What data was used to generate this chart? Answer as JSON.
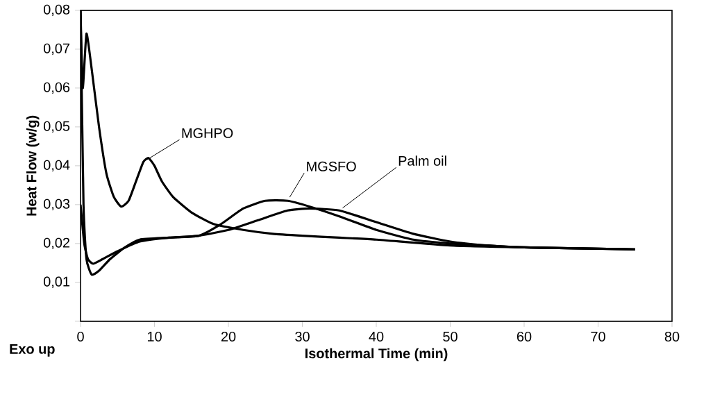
{
  "chart_data": {
    "type": "line",
    "xlabel": "Isothermal Time (min)",
    "ylabel": "Heat Flow (w/g)",
    "annotations": [
      "Exo up"
    ],
    "series": [
      {
        "name": "MGHPO",
        "color": "#000000",
        "x": [
          0,
          0.3,
          0.8,
          1.5,
          2.5,
          3.5,
          4.5,
          5.5,
          6.5,
          7.5,
          8.5,
          9.2,
          10,
          11,
          12.5,
          15,
          18,
          22,
          26,
          30,
          35,
          40,
          50,
          60,
          75
        ],
        "values": [
          0.08,
          0.06,
          0.074,
          0.065,
          0.05,
          0.038,
          0.032,
          0.0295,
          0.031,
          0.036,
          0.041,
          0.042,
          0.04,
          0.036,
          0.032,
          0.028,
          0.025,
          0.0235,
          0.0225,
          0.022,
          0.0215,
          0.021,
          0.0195,
          0.019,
          0.0185
        ]
      },
      {
        "name": "MGSFO",
        "color": "#000000",
        "x": [
          0,
          0.4,
          0.8,
          1.5,
          2.5,
          4,
          6,
          8,
          12,
          16,
          19,
          22,
          25,
          28,
          31,
          35,
          40,
          45,
          50,
          55,
          60,
          75
        ],
        "values": [
          0.08,
          0.03,
          0.016,
          0.012,
          0.013,
          0.016,
          0.019,
          0.021,
          0.0215,
          0.022,
          0.025,
          0.029,
          0.031,
          0.031,
          0.0295,
          0.027,
          0.0235,
          0.021,
          0.02,
          0.0195,
          0.019,
          0.0185
        ]
      },
      {
        "name": "Palm oil",
        "color": "#000000",
        "x": [
          0,
          0.5,
          1,
          1.7,
          3,
          5,
          8,
          12,
          16,
          20,
          24,
          28,
          31,
          35,
          40,
          45,
          50,
          55,
          60,
          75
        ],
        "values": [
          0.03,
          0.02,
          0.016,
          0.0148,
          0.016,
          0.018,
          0.0205,
          0.0215,
          0.022,
          0.0235,
          0.026,
          0.0285,
          0.029,
          0.0285,
          0.0255,
          0.0225,
          0.0205,
          0.0195,
          0.019,
          0.0185
        ]
      }
    ],
    "xlim": [
      0,
      80
    ],
    "xticks": [
      0,
      10,
      20,
      30,
      40,
      50,
      60,
      70,
      80
    ],
    "ylim": [
      0,
      0.08
    ],
    "yticks": [
      {
        "value": 0,
        "label": null
      },
      {
        "value": 0.01,
        "label": "0,01"
      },
      {
        "value": 0.02,
        "label": "0,02"
      },
      {
        "value": 0.03,
        "label": "0,03"
      },
      {
        "value": 0.04,
        "label": "0,04"
      },
      {
        "value": 0.05,
        "label": "0,05"
      },
      {
        "value": 0.06,
        "label": "0,06"
      },
      {
        "value": 0.07,
        "label": "0,07"
      },
      {
        "value": 0.08,
        "label": "0,08"
      }
    ],
    "grid": false,
    "legend": false,
    "marker": "none",
    "line_style": "solid"
  }
}
